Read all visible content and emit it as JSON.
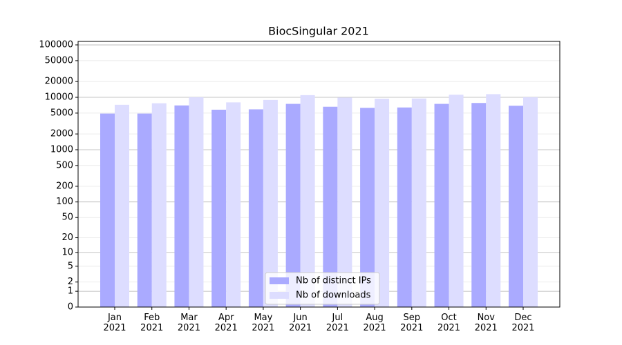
{
  "chart_data": {
    "type": "bar",
    "title": "BiocSingular 2021",
    "yscale": "log1p",
    "categories": [
      "Jan\n2021",
      "Feb\n2021",
      "Mar\n2021",
      "Apr\n2021",
      "May\n2021",
      "Jun\n2021",
      "Jul\n2021",
      "Aug\n2021",
      "Sep\n2021",
      "Oct\n2021",
      "Nov\n2021",
      "Dec\n2021"
    ],
    "series": [
      {
        "name": "Nb of distinct IPs",
        "color": "#aaaaff",
        "values": [
          4900,
          4900,
          7000,
          5800,
          5900,
          7500,
          6600,
          6300,
          6400,
          7500,
          7800,
          6900
        ]
      },
      {
        "name": "Nb of downloads",
        "color": "#ddddff",
        "values": [
          7200,
          7700,
          10000,
          8000,
          8900,
          11000,
          9900,
          9400,
          9500,
          11200,
          11500,
          10000
        ]
      }
    ],
    "ylim": [
      0,
      116500
    ],
    "yticks": [
      0,
      1,
      2,
      5,
      10,
      20,
      50,
      100,
      200,
      500,
      1000,
      2000,
      5000,
      10000,
      20000,
      50000,
      100000
    ],
    "grid": true,
    "legend": "lower center"
  }
}
